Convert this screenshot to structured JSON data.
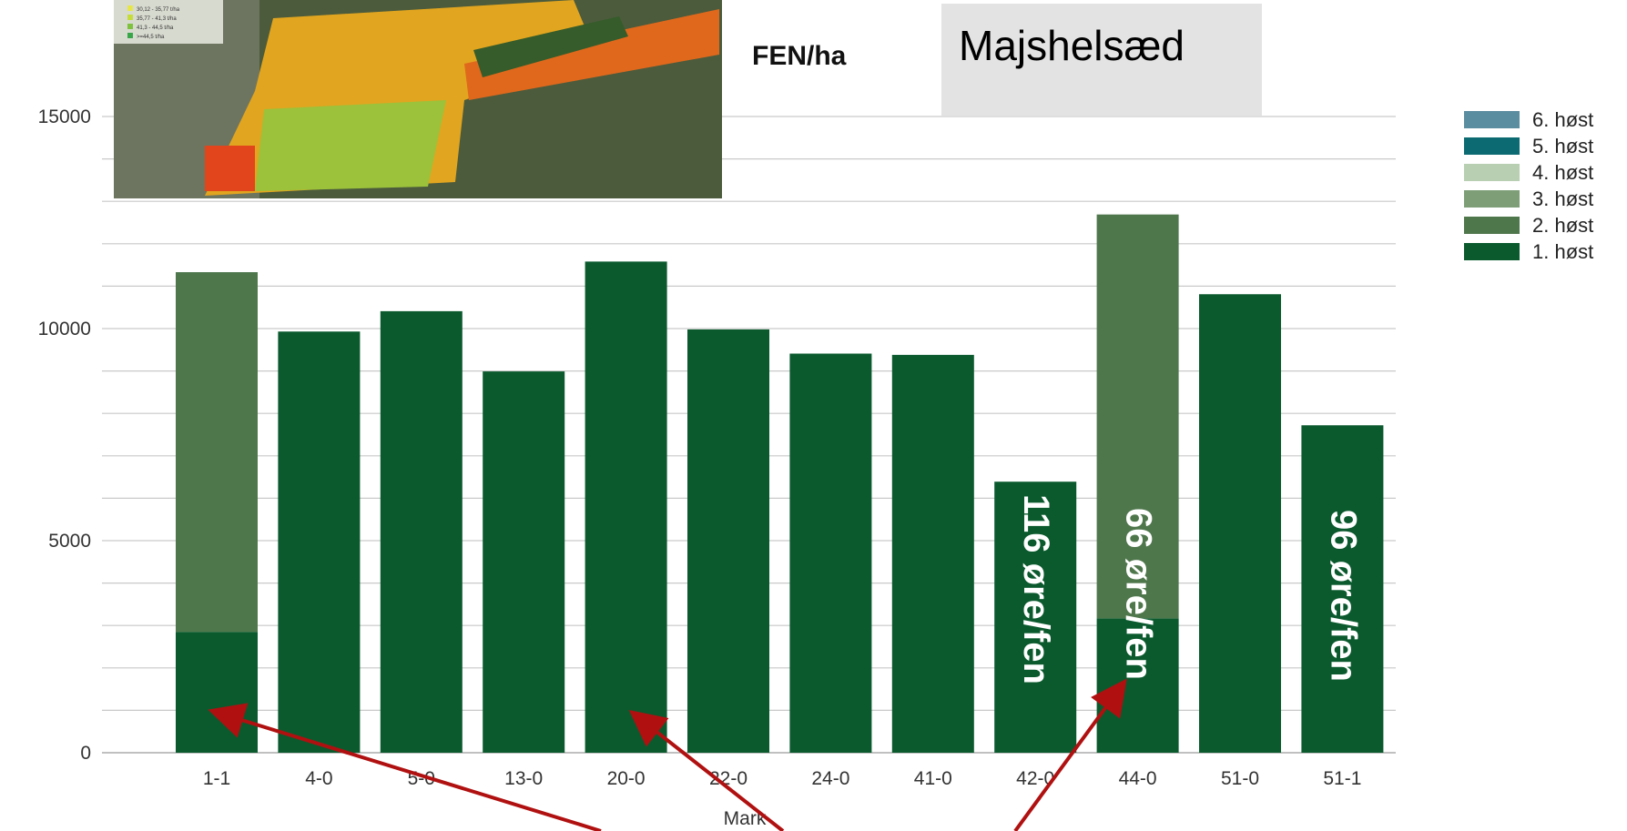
{
  "title_box": {
    "text": "Majshelsæd",
    "bg": "#e3e3e3"
  },
  "unit_label": "FEN/ha",
  "chart_data": {
    "type": "bar",
    "stacked": true,
    "xlabel": "Mark",
    "ylabel": "",
    "ylim": [
      0,
      15000
    ],
    "yticks": [
      0,
      5000,
      10000,
      15000
    ],
    "grid": true,
    "legend_position": "right",
    "categories": [
      "1-1",
      "4-0",
      "5-0",
      "13-0",
      "20-0",
      "22-0",
      "24-0",
      "41-0",
      "42-0",
      "44-0",
      "51-0",
      "51-1"
    ],
    "series": [
      {
        "name": "1. høst",
        "color": "#0b5a2e",
        "values": [
          2850,
          9930,
          10410,
          8990,
          11580,
          9980,
          9410,
          9380,
          6390,
          3170,
          10810,
          7720
        ]
      },
      {
        "name": "2. høst",
        "color": "#4f774c",
        "values": [
          8480,
          0,
          0,
          0,
          0,
          0,
          0,
          0,
          0,
          9520,
          0,
          0
        ]
      },
      {
        "name": "3. høst",
        "color": "#7e9e78",
        "values": [
          0,
          0,
          0,
          0,
          0,
          0,
          0,
          0,
          0,
          0,
          0,
          0
        ]
      },
      {
        "name": "4. høst",
        "color": "#b8cfb2",
        "values": [
          0,
          0,
          0,
          0,
          0,
          0,
          0,
          0,
          0,
          0,
          0,
          0
        ]
      },
      {
        "name": "5. høst",
        "color": "#0c6b72",
        "values": [
          0,
          0,
          0,
          0,
          0,
          0,
          0,
          0,
          0,
          0,
          0,
          0
        ]
      },
      {
        "name": "6. høst",
        "color": "#5b8da0",
        "values": [
          0,
          0,
          0,
          0,
          0,
          0,
          0,
          0,
          0,
          0,
          0,
          0
        ]
      }
    ],
    "annotations": [
      {
        "category": "42-0",
        "text": "116 øre/fen"
      },
      {
        "category": "44-0",
        "text": "66 øre/fen"
      },
      {
        "category": "51-1",
        "text": "96 øre/fen"
      }
    ]
  },
  "arrow_color": "#b01010",
  "map_image": {
    "legend_rows": [
      "30,12 - 35,77  t/ha",
      "35,77 - 41,3  t/ha",
      "41,3 - 44,5  t/ha",
      ">=44,5  t/ha"
    ]
  }
}
